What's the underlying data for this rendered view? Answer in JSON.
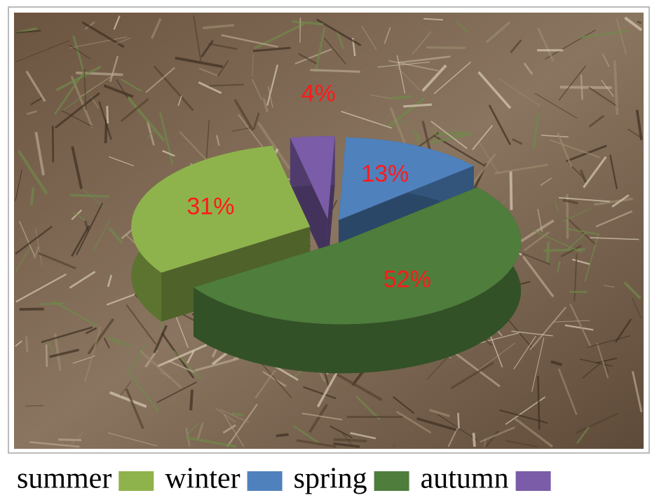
{
  "chart_data": {
    "type": "pie",
    "categories": [
      "summer",
      "winter",
      "spring",
      "autumn"
    ],
    "values": [
      31,
      13,
      52,
      4
    ],
    "value_labels": [
      "31%",
      "13%",
      "52%",
      "4%"
    ],
    "colors": [
      "#8fb34c",
      "#4f81bd",
      "#4e7d3c",
      "#7a5ca8"
    ],
    "legend": "bottom"
  }
}
